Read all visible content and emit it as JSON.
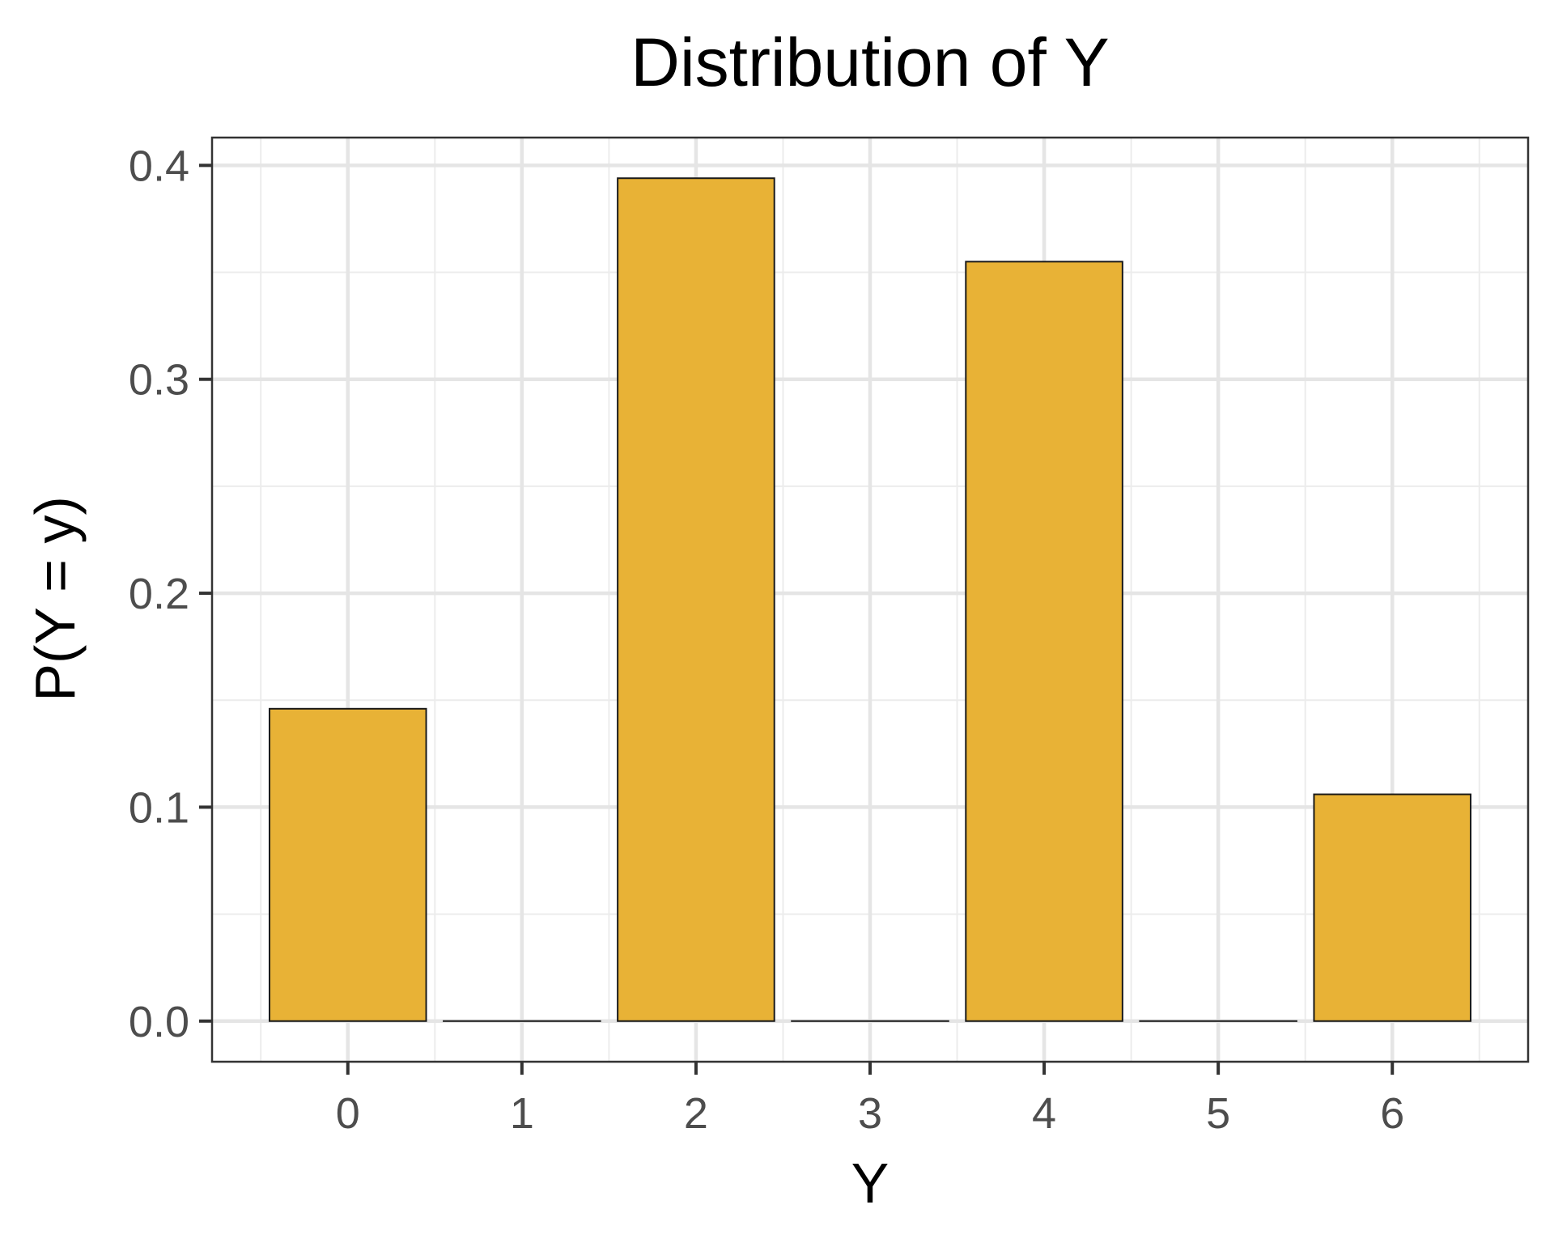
{
  "chart_data": {
    "type": "bar",
    "title": "Distribution of Y",
    "xlabel": "Y",
    "ylabel": "P(Y = y)",
    "categories": [
      "0",
      "1",
      "2",
      "3",
      "4",
      "5",
      "6"
    ],
    "values": [
      0.146,
      0.0,
      0.394,
      0.0,
      0.355,
      0.0,
      0.106
    ],
    "x_ticks": [
      "0",
      "1",
      "2",
      "3",
      "4",
      "5",
      "6"
    ],
    "y_ticks": [
      "0.0",
      "0.1",
      "0.2",
      "0.3",
      "0.4"
    ],
    "ylim": [
      -0.019,
      0.413
    ],
    "grid": true,
    "legend": "none",
    "colors": {
      "bar_fill": "#E8B236",
      "bar_stroke": "#1a1a1a",
      "grid_major": "#e5e5e5",
      "grid_minor": "#ececec",
      "panel_border": "#333333",
      "tick_label": "#4d4d4d"
    }
  }
}
